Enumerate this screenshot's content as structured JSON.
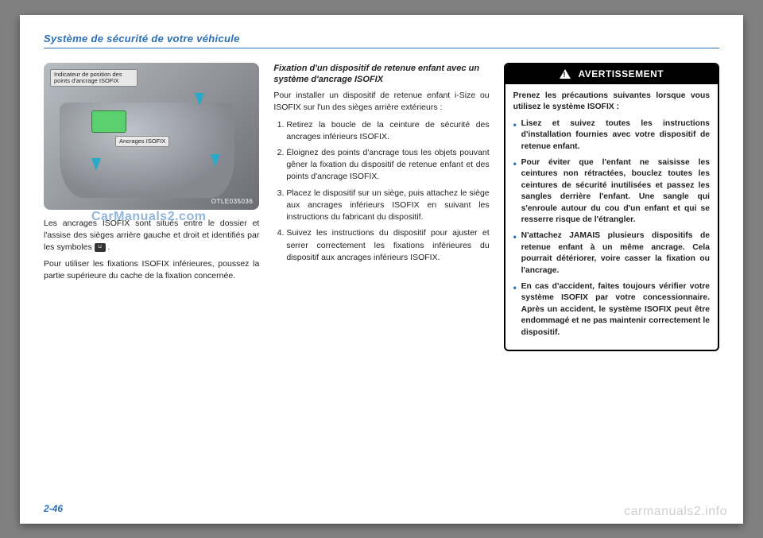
{
  "header": {
    "title": "Système de sécurité de votre véhicule"
  },
  "figure": {
    "label_top": "Indicateur de position des points d'ancrage ISOFIX",
    "label_mid": "Ancrages ISOFIX",
    "code": "OTLE035036",
    "colors": {
      "arrow": "#2aa9c9",
      "buckle": "#5ad06f",
      "bg_stops": [
        "#b7bcc3",
        "#8b8e94",
        "#6a6d72"
      ]
    }
  },
  "col1": {
    "para1_a": "Les ancrages ISOFIX sont situés entre le dossier et l'assise des sièges arrière gauche et droit et identifiés par les symboles ",
    "para1_b": " .",
    "para2": "Pour utiliser les fixations ISOFIX inférieures, poussez la partie supérieure du cache de la fixation concernée."
  },
  "watermark": "CarManuals2.com",
  "col2": {
    "subhead": "Fixation d'un dispositif de retenue enfant avec un système d'ancrage ISOFIX",
    "intro": "Pour installer un dispositif de retenue enfant i-Size ou ISOFIX sur l'un des sièges arrière extérieurs  :",
    "steps": [
      "Retirez la boucle de la ceinture de sécurité des ancrages inférieurs ISOFIX.",
      "Éloignez des points d'ancrage tous les objets pouvant gêner la fixation du dispositif de retenue enfant et des points d'ancrage ISOFIX.",
      "Placez le dispositif sur un siège, puis attachez le siège aux ancrages inférieurs ISOFIX en suivant les instructions du fabricant du dispositif.",
      "Suivez les instructions du dispositif pour ajuster et serrer correctement les fixations inférieures du dispositif aux ancrages inférieurs ISOFIX."
    ]
  },
  "warning": {
    "title": "AVERTISSEMENT",
    "intro": "Prenez les précautions suivantes lorsque vous utilisez le système ISOFIX :",
    "bullets": [
      "Lisez et suivez toutes les instructions d'installation fournies avec votre dispositif de retenue enfant.",
      "Pour éviter que l'enfant ne saisisse les ceintures non rétractées, bouclez toutes les ceintures de sécurité inutilisées et passez les sangles derrière l'enfant. Une sangle qui s'enroule autour du cou d'un enfant et qui se resserre risque de l'étrangler.",
      "N'attachez JAMAIS plusieurs dispositifs de retenue enfant à un même ancrage. Cela pourrait détériorer, voire casser la fixation ou l'ancrage.",
      "En cas d'accident, faites toujours vérifier votre système ISOFIX par votre concessionnaire. Après un accident, le système ISOFIX peut être endommagé et ne pas maintenir correctement le dispositif."
    ]
  },
  "page_number": "2-46",
  "footer_site": "carmanuals2.info"
}
